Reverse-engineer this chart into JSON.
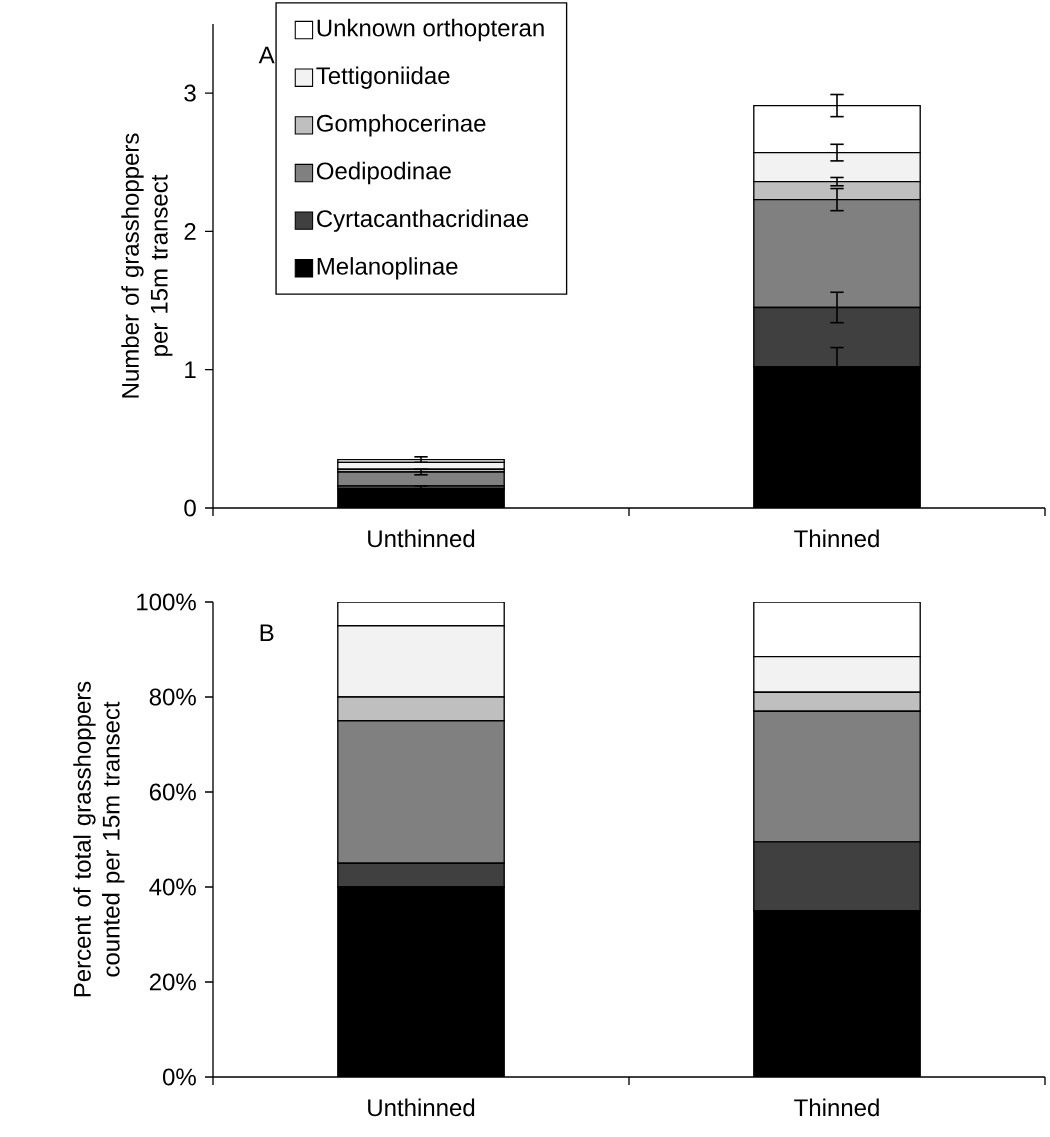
{
  "chart_data": [
    {
      "type": "bar",
      "stacked": true,
      "ylabel": "Number of grasshoppers per 15m transect",
      "categories": [
        "Unthinned",
        "Thinned"
      ],
      "ylim": [
        0,
        3.5
      ],
      "yticks": [
        0,
        1,
        2,
        3
      ],
      "legend": "top left",
      "annotations": [
        "A"
      ],
      "series": [
        {
          "name": "Melanoplinae",
          "color": "#000000",
          "values": [
            0.14,
            1.02
          ],
          "errors": [
            0.02,
            0.14
          ]
        },
        {
          "name": "Cyrtacanthacridinae",
          "color": "#404040",
          "values": [
            0.02,
            0.43
          ],
          "errors": [
            null,
            0.11
          ]
        },
        {
          "name": "Oedipodinae",
          "color": "#808080",
          "values": [
            0.1,
            0.78
          ],
          "errors": [
            0.02,
            0.08
          ]
        },
        {
          "name": "Gomphocerinae",
          "color": "#bfbfbf",
          "values": [
            0.02,
            0.13
          ],
          "errors": [
            null,
            0.03
          ]
        },
        {
          "name": "Tettigoniidae",
          "color": "#f2f2f2",
          "values": [
            0.05,
            0.21
          ],
          "errors": [
            null,
            0.06
          ]
        },
        {
          "name": "Unknown orthopteran",
          "color": "#ffffff",
          "values": [
            0.02,
            0.34
          ],
          "errors": [
            0.02,
            0.08
          ]
        }
      ]
    },
    {
      "type": "bar",
      "stacked": true,
      "ylabel": "Percent of total grasshoppers counted per 15m transect",
      "categories": [
        "Unthinned",
        "Thinned"
      ],
      "ylim": [
        0,
        100
      ],
      "yticks": [
        {
          "value": 0,
          "label": "0%"
        },
        {
          "value": 20,
          "label": "20%"
        },
        {
          "value": 40,
          "label": "40%"
        },
        {
          "value": 60,
          "label": "60%"
        },
        {
          "value": 80,
          "label": "80%"
        },
        {
          "value": 100,
          "label": "100%"
        }
      ],
      "annotations": [
        "B"
      ],
      "series": [
        {
          "color": "#000000",
          "values": [
            40,
            35
          ]
        },
        {
          "color": "#404040",
          "values": [
            5,
            14.5
          ]
        },
        {
          "color": "#808080",
          "values": [
            30,
            27.5
          ]
        },
        {
          "color": "#bfbfbf",
          "values": [
            5,
            4
          ]
        },
        {
          "color": "#f2f2f2",
          "values": [
            15,
            7.5
          ]
        },
        {
          "color": "#ffffff",
          "values": [
            5,
            11.5
          ]
        }
      ]
    }
  ]
}
